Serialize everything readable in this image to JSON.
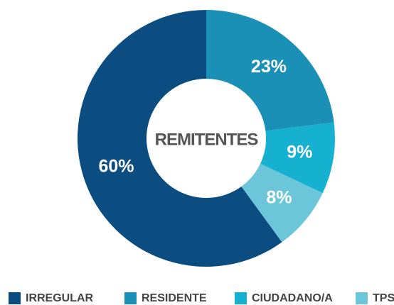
{
  "chart_data": {
    "type": "donut",
    "center_label": "REMITENTES",
    "categories": [
      "IRREGULAR",
      "RESIDENTE",
      "CIUDADANO/A",
      "TPS"
    ],
    "values": [
      60,
      23,
      9,
      8
    ],
    "value_labels": [
      "60%",
      "23%",
      "9%",
      "8%"
    ],
    "colors": [
      "#0b4d80",
      "#1a90b6",
      "#16b0d1",
      "#6cc6da"
    ],
    "legend": "bottom"
  }
}
